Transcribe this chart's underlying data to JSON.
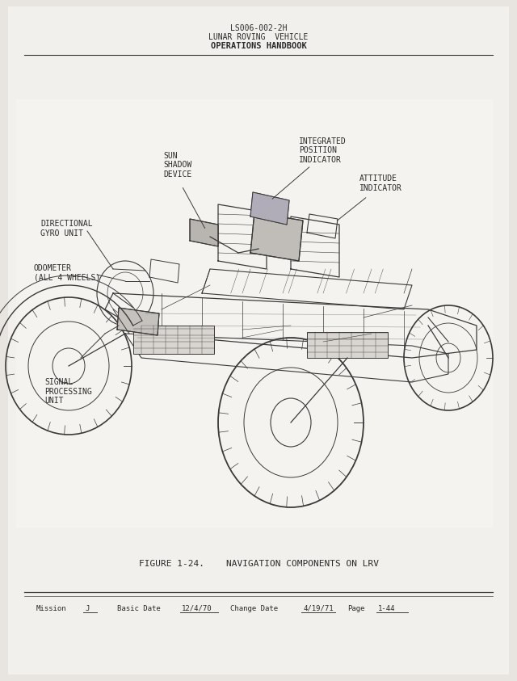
{
  "bg_color": "#e8e5e0",
  "page_color": "#f2f0ec",
  "header_line1": "LS006-002-2H",
  "header_line2": "LUNAR ROVING  VEHICLE",
  "header_line3": "OPERATIONS HANDBOOK",
  "figure_caption": "FIGURE 1-24.    NAVIGATION COMPONENTS ON LRV",
  "footer_fields": "Mission    J       Basic Date    12/4/70    Change Date    4/19/71    Page  1-44",
  "label_sun": "SUN\nSHADOW\nDEVICE",
  "label_ipi": "INTEGRATED\nPOSITION\nINDICATOR",
  "label_att": "ATTITUDE\nINDICATOR",
  "label_dir": "DIRECTIONAL\nGYRO UNIT",
  "label_odo": "ODOMETER\n(ALL 4 WHEELS)",
  "label_sig": "SIGNAL\nPROCESSING\nUNIT",
  "line_color": "#3a3a3a",
  "text_color": "#2a2a2a",
  "scan_gray": "#c8c5c0"
}
